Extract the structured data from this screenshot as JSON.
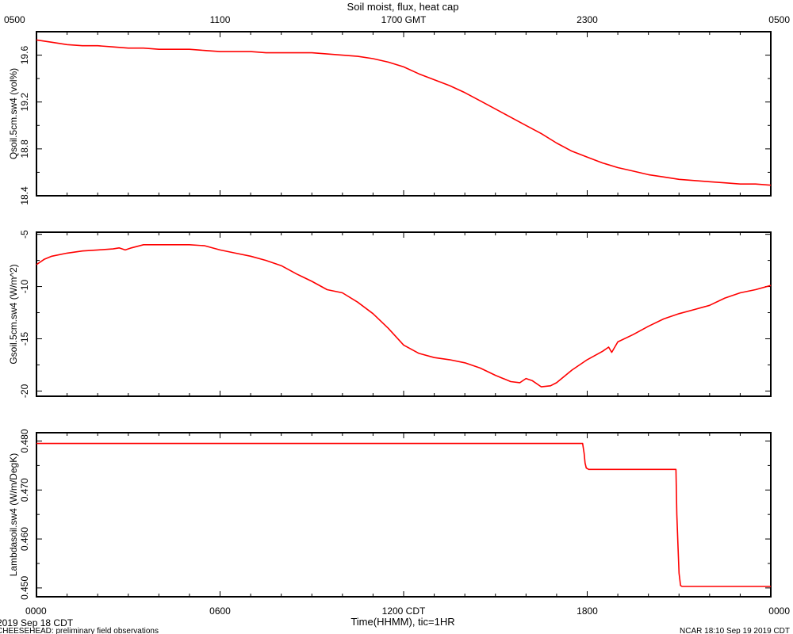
{
  "header": {
    "title": "Soil moist, flux, heat cap"
  },
  "top_axis": {
    "tick_labels": [
      "0500",
      "1100",
      "1700 GMT",
      "2300",
      "0500"
    ]
  },
  "bottom_axis": {
    "tick_labels": [
      "0000",
      "0600",
      "1200 CDT",
      "1800",
      "0000"
    ],
    "xlabel": "Time(HHMM), tic=1HR",
    "date_label": "2019 Sep 18 CDT"
  },
  "footer": {
    "left": "CHEESEHEAD: preliminary field observations",
    "right": "NCAR 18:10 Sep 19 2019 CDT"
  },
  "colors": {
    "series": "#ff0000",
    "axis": "#000000"
  },
  "chart_data": [
    {
      "type": "line",
      "ylabel": "Qsoil.5cm.sw4 (vol%)",
      "ylim": [
        18.4,
        19.8
      ],
      "xlim": [
        0,
        24
      ],
      "yticks": [
        18.4,
        18.8,
        19.2,
        19.6
      ],
      "ytick_labels": [
        "18.4",
        "18.8",
        "19.2",
        "19.6"
      ],
      "series": [
        {
          "x": [
            0,
            0.5,
            1,
            1.5,
            2,
            2.5,
            3,
            3.5,
            4,
            4.5,
            5,
            5.5,
            6,
            6.5,
            7,
            7.5,
            8,
            8.5,
            9,
            9.5,
            10,
            10.5,
            11,
            11.5,
            12,
            12.5,
            13,
            13.5,
            14,
            14.5,
            15,
            15.5,
            16,
            16.5,
            17,
            17.5,
            18,
            18.5,
            19,
            19.5,
            20,
            20.5,
            21,
            21.5,
            22,
            22.5,
            23,
            23.5,
            24
          ],
          "y": [
            19.73,
            19.71,
            19.69,
            19.68,
            19.68,
            19.67,
            19.66,
            19.66,
            19.65,
            19.65,
            19.65,
            19.64,
            19.63,
            19.63,
            19.63,
            19.62,
            19.62,
            19.62,
            19.62,
            19.61,
            19.6,
            19.59,
            19.57,
            19.54,
            19.5,
            19.44,
            19.39,
            19.34,
            19.28,
            19.21,
            19.14,
            19.07,
            19.0,
            18.93,
            18.85,
            18.78,
            18.73,
            18.68,
            18.64,
            18.61,
            18.58,
            18.56,
            18.54,
            18.53,
            18.52,
            18.51,
            18.5,
            18.5,
            18.49
          ]
        }
      ]
    },
    {
      "type": "line",
      "ylabel": "Gsoil.5cm.sw4 (W/m^2)",
      "ylim": [
        -20.5,
        -4.8
      ],
      "xlim": [
        0,
        24
      ],
      "yticks": [
        -20,
        -15,
        -10,
        -5
      ],
      "ytick_labels": [
        "-20",
        "-15",
        "-10",
        "-5"
      ],
      "series": [
        {
          "x": [
            0,
            0.25,
            0.5,
            1,
            1.5,
            2,
            2.5,
            2.7,
            2.9,
            3.1,
            3.5,
            4,
            4.5,
            5,
            5.5,
            6,
            6.5,
            7,
            7.5,
            8,
            8.5,
            9,
            9.5,
            10,
            10.5,
            11,
            11.5,
            12,
            12.5,
            13,
            13.5,
            14,
            14.5,
            15,
            15.5,
            15.8,
            16,
            16.2,
            16.5,
            16.8,
            17,
            17.5,
            18,
            18.5,
            18.7,
            18.8,
            19,
            19.5,
            20,
            20.5,
            21,
            21.5,
            22,
            22.5,
            23,
            23.5,
            24
          ],
          "y": [
            -7.9,
            -7.4,
            -7.1,
            -6.8,
            -6.6,
            -6.5,
            -6.4,
            -6.3,
            -6.5,
            -6.3,
            -6.0,
            -6.0,
            -6.0,
            -6.0,
            -6.1,
            -6.5,
            -6.8,
            -7.1,
            -7.5,
            -8.0,
            -8.8,
            -9.5,
            -10.3,
            -10.6,
            -11.5,
            -12.6,
            -14.0,
            -15.6,
            -16.4,
            -16.8,
            -17.0,
            -17.3,
            -17.8,
            -18.5,
            -19.1,
            -19.2,
            -18.8,
            -19.0,
            -19.6,
            -19.5,
            -19.2,
            -18.0,
            -17.0,
            -16.2,
            -15.8,
            -16.3,
            -15.3,
            -14.6,
            -13.8,
            -13.1,
            -12.6,
            -12.2,
            -11.8,
            -11.1,
            -10.6,
            -10.3,
            -9.9
          ]
        }
      ]
    },
    {
      "type": "line",
      "ylabel": "Lambdasoil.sw4 (W/m/DegK)",
      "ylim": [
        0.4482,
        0.4817
      ],
      "xlim": [
        0,
        24
      ],
      "yticks": [
        0.45,
        0.46,
        0.47,
        0.48
      ],
      "ytick_labels": [
        "0.450",
        "0.460",
        "0.470",
        "0.480"
      ],
      "series": [
        {
          "x": [
            0,
            17.85,
            17.9,
            17.93,
            17.97,
            18.05,
            20.9,
            20.93,
            20.97,
            21,
            21.05,
            21.1,
            24
          ],
          "y": [
            0.4795,
            0.4795,
            0.4775,
            0.4755,
            0.4745,
            0.4742,
            0.4742,
            0.465,
            0.458,
            0.453,
            0.4505,
            0.4503,
            0.4503
          ]
        }
      ]
    }
  ]
}
